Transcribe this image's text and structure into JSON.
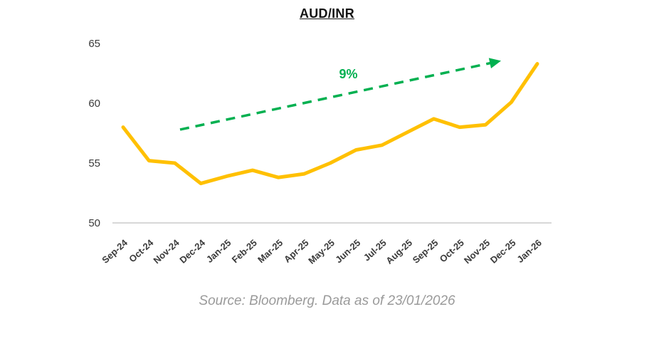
{
  "chart_data": {
    "type": "line",
    "title": "AUD/INR",
    "categories": [
      "Sep-24",
      "Oct-24",
      "Nov-24",
      "Dec-24",
      "Jan-25",
      "Feb-25",
      "Mar-25",
      "Apr-25",
      "May-25",
      "Jun-25",
      "Jul-25",
      "Aug-25",
      "Sep-25",
      "Oct-25",
      "Nov-25",
      "Dec-25",
      "Jan-26"
    ],
    "series": [
      {
        "name": "AUD/INR",
        "color": "#FFC000",
        "values": [
          58.0,
          55.2,
          55.0,
          53.3,
          53.9,
          54.4,
          53.8,
          54.1,
          55.0,
          56.1,
          56.5,
          57.6,
          58.7,
          58.0,
          58.2,
          60.1,
          63.3
        ]
      }
    ],
    "xlabel": "",
    "ylabel": "",
    "ylim": [
      50,
      65
    ],
    "yticks": [
      65,
      60,
      55,
      50
    ],
    "grid": false,
    "legend": "none",
    "annotations": {
      "trend_arrow": {
        "label": "9%",
        "color": "#00B050",
        "style": "dashed",
        "start": {
          "index": 2.2,
          "value": 57.8
        },
        "end": {
          "index": 14.6,
          "value": 63.55
        },
        "label_pos": {
          "index": 8.7,
          "value": 62.45
        }
      }
    }
  },
  "footer": {
    "source_text": "Source: Bloomberg. Data as of 23/01/2026"
  },
  "colors": {
    "line": "#FFC000",
    "accent_green": "#00B050",
    "axis_text": "#3a3a3a",
    "baseline": "#D8D8D8",
    "title_text": "#141414",
    "source_text": "#9a9a9a",
    "background": "#ffffff"
  }
}
